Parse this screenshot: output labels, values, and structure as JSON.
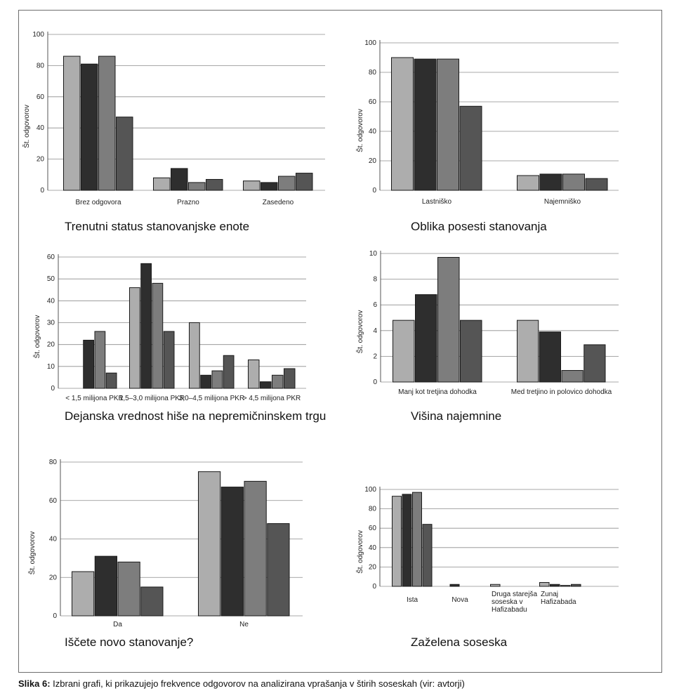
{
  "caption": {
    "label": "Slika 6:",
    "text": "Izbrani grafi, ki prikazujejo frekvence odgovorov na analizirana vprašanja v štirih soseskah (vir: avtorji)"
  },
  "colors": [
    "#adadad",
    "#2e2e2e",
    "#7d7d7d",
    "#555555"
  ],
  "chart_data": [
    {
      "type": "bar",
      "title": "Trenutni status stanovanjske enote",
      "ylabel": "Št. odgovorov",
      "ylim": [
        0,
        100
      ],
      "yticks": [
        "0",
        "20",
        "40",
        "60",
        "80",
        "100"
      ],
      "categories": [
        "Brez odgovora",
        "Prazno",
        "Zasedeno"
      ],
      "series": [
        {
          "values": [
            86,
            8,
            6
          ]
        },
        {
          "values": [
            81,
            14,
            5
          ]
        },
        {
          "values": [
            86,
            5,
            9
          ]
        },
        {
          "values": [
            47,
            7,
            11
          ]
        }
      ]
    },
    {
      "type": "bar",
      "title": "Oblika posesti stanovanja",
      "ylabel": "Št. odgovorov",
      "ylim": [
        0,
        100
      ],
      "yticks": [
        "0",
        "20",
        "40",
        "60",
        "80",
        "100"
      ],
      "categories": [
        "Lastniško",
        "Najemniško"
      ],
      "series": [
        {
          "values": [
            90,
            10
          ]
        },
        {
          "values": [
            89,
            11
          ]
        },
        {
          "values": [
            89,
            11
          ]
        },
        {
          "values": [
            57,
            8
          ]
        }
      ]
    },
    {
      "type": "bar",
      "title": "Dejanska vrednost hiše na nepremičninskem trgu",
      "ylabel": "Št. odgovorov",
      "ylim": [
        0,
        60
      ],
      "yticks": [
        "0",
        "10",
        "20",
        "30",
        "40",
        "50",
        "60"
      ],
      "categories": [
        "< 1,5 milijona PKR",
        "1,5–3,0 milijona PKR",
        "3,0–4,5 milijona PKR",
        "> 4,5 milijona PKR"
      ],
      "series": [
        {
          "values": [
            0,
            46,
            30,
            13
          ]
        },
        {
          "values": [
            22,
            57,
            6,
            3
          ]
        },
        {
          "values": [
            26,
            48,
            8,
            6
          ]
        },
        {
          "values": [
            7,
            26,
            15,
            9
          ]
        }
      ]
    },
    {
      "type": "bar",
      "title": "Višina najemnine",
      "ylabel": "Št. odgovorov",
      "ylim": [
        0,
        10
      ],
      "yticks": [
        "0",
        "2",
        "4",
        "6",
        "8",
        "10"
      ],
      "categories": [
        "Manj kot tretjina dohodka",
        "Med tretjino in polovico dohodka"
      ],
      "series": [
        {
          "values": [
            4.8,
            4.8
          ]
        },
        {
          "values": [
            6.8,
            3.9
          ]
        },
        {
          "values": [
            9.7,
            0.9
          ]
        },
        {
          "values": [
            4.8,
            2.9
          ]
        }
      ]
    },
    {
      "type": "bar",
      "title": "Iščete novo stanovanje?",
      "ylabel": "Št. odgovorov",
      "ylim": [
        0,
        80
      ],
      "yticks": [
        "0",
        "20",
        "40",
        "60",
        "80"
      ],
      "categories": [
        "Da",
        "Ne"
      ],
      "series": [
        {
          "values": [
            23,
            75
          ]
        },
        {
          "values": [
            31,
            67
          ]
        },
        {
          "values": [
            28,
            70
          ]
        },
        {
          "values": [
            15,
            48
          ]
        }
      ]
    },
    {
      "type": "bar",
      "title": "Zaželena soseska",
      "ylabel": "Št. odgovorov",
      "ylim": [
        0,
        100
      ],
      "yticks": [
        "0",
        "20",
        "40",
        "60",
        "80",
        "100"
      ],
      "categories": [
        "Ista",
        "Nova",
        "Druga starejša soseska v Hafizabadu",
        "Zunaj Hafizabada"
      ],
      "category_lines": [
        [
          "Ista"
        ],
        [
          "Nova"
        ],
        [
          "Druga starejša",
          "soseska v",
          "Hafizabadu"
        ],
        [
          "Zunaj",
          "Hafizabada"
        ]
      ],
      "series": [
        {
          "values": [
            93,
            0,
            2,
            4
          ]
        },
        {
          "values": [
            95,
            2,
            0,
            2
          ]
        },
        {
          "values": [
            97,
            0,
            0,
            1
          ]
        },
        {
          "values": [
            64,
            0,
            0,
            2
          ]
        }
      ]
    }
  ]
}
